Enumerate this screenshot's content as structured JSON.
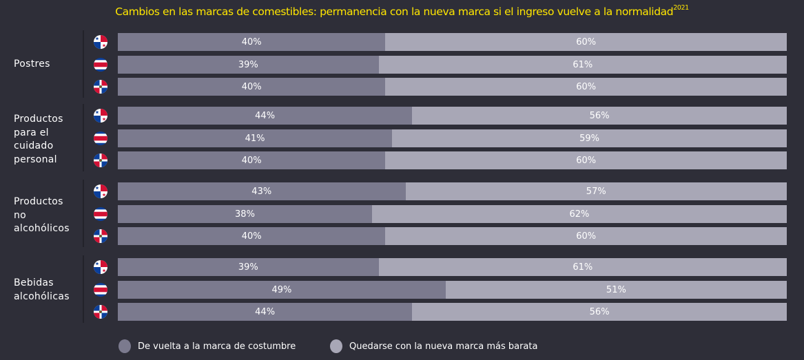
{
  "chart_data": {
    "type": "bar",
    "orientation": "horizontal",
    "stacked": true,
    "percent": true,
    "title": "Cambios en las marcas de comestibles: permanencia con la nueva marca si el ingreso vuelve a la normalidad",
    "title_superscript": "2021",
    "colors": {
      "a": "#7b7a8e",
      "b": "#a8a7b6",
      "title": "#ffe600",
      "background": "#2e2e38"
    },
    "legend": {
      "placement": "bottom-left",
      "entries": [
        {
          "key": "a",
          "label": "De vuelta a la marca de costumbre"
        },
        {
          "key": "b",
          "label": "Quedarse con la nueva marca más barata"
        }
      ]
    },
    "countries": [
      "panama-flag-icon",
      "costa-rica-flag-icon",
      "dominican-republic-flag-icon"
    ],
    "groups": [
      {
        "label": "Postres",
        "rows": [
          {
            "country": "panama",
            "a": 40,
            "b": 60,
            "a_label": "40%",
            "b_label": "60%"
          },
          {
            "country": "costa-rica",
            "a": 39,
            "b": 61,
            "a_label": "39%",
            "b_label": "61%"
          },
          {
            "country": "dominican-republic",
            "a": 40,
            "b": 60,
            "a_label": "40%",
            "b_label": "60%"
          }
        ]
      },
      {
        "label": "Productos para el cuidado personal",
        "rows": [
          {
            "country": "panama",
            "a": 44,
            "b": 56,
            "a_label": "44%",
            "b_label": "56%"
          },
          {
            "country": "costa-rica",
            "a": 41,
            "b": 59,
            "a_label": "41%",
            "b_label": "59%"
          },
          {
            "country": "dominican-republic",
            "a": 40,
            "b": 60,
            "a_label": "40%",
            "b_label": "60%"
          }
        ]
      },
      {
        "label": "Productos no alcohólicos",
        "rows": [
          {
            "country": "panama",
            "a": 43,
            "b": 57,
            "a_label": "43%",
            "b_label": "57%"
          },
          {
            "country": "costa-rica",
            "a": 38,
            "b": 62,
            "a_label": "38%",
            "b_label": "62%"
          },
          {
            "country": "dominican-republic",
            "a": 40,
            "b": 60,
            "a_label": "40%",
            "b_label": "60%"
          }
        ]
      },
      {
        "label": "Bebidas alcohólicas",
        "rows": [
          {
            "country": "panama",
            "a": 39,
            "b": 61,
            "a_label": "39%",
            "b_label": "61%"
          },
          {
            "country": "costa-rica",
            "a": 49,
            "b": 51,
            "a_label": "49%",
            "b_label": "51%"
          },
          {
            "country": "dominican-republic",
            "a": 44,
            "b": 56,
            "a_label": "44%",
            "b_label": "56%"
          }
        ]
      }
    ]
  }
}
